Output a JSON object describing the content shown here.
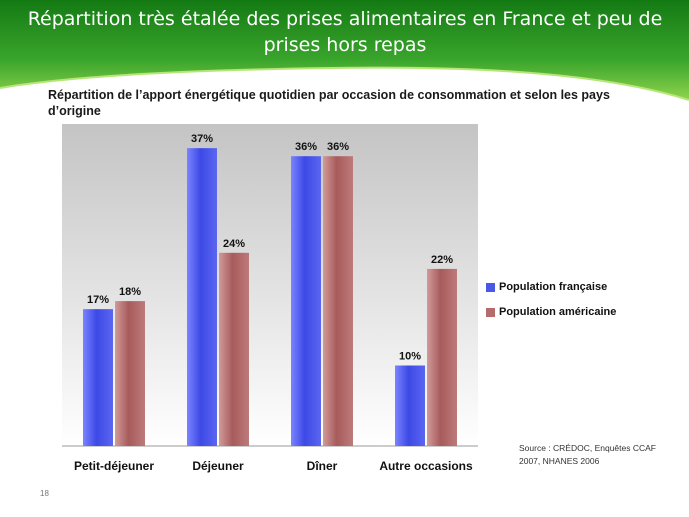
{
  "slide": {
    "title": "Répartition très étalée des prises alimentaires en France et peu de prises hors repas",
    "page_number": "18"
  },
  "chart_data": {
    "type": "bar",
    "title": "Répartition de l’apport énergétique quotidien par occasion de consommation et selon les pays d’origine",
    "xlabel": "",
    "ylabel": "",
    "ylim": [
      0,
      40
    ],
    "grid": false,
    "legend_position": "right",
    "categories": [
      "Petit-déjeuner",
      "Déjeuner",
      "Dîner",
      "Autre occasions"
    ],
    "series": [
      {
        "name": "Population française",
        "values": [
          17,
          37,
          36,
          10
        ],
        "labels": [
          "17%",
          "37%",
          "36%",
          "10%"
        ],
        "color": "#4a57e8"
      },
      {
        "name": "Population américaine",
        "values": [
          18,
          24,
          36,
          22
        ],
        "labels": [
          "18%",
          "24%",
          "36%",
          "22%"
        ],
        "color": "#b56b6b"
      }
    ],
    "source": "Source : CRÉDOC, Enquêtes CCAF 2007, NHANES 2006"
  },
  "colors": {
    "header_green_dark": "#1f8a1f",
    "header_green_light": "#8fd44c",
    "plot_bg_top": "#c8c8c8",
    "plot_bg_bottom": "#ffffff"
  }
}
